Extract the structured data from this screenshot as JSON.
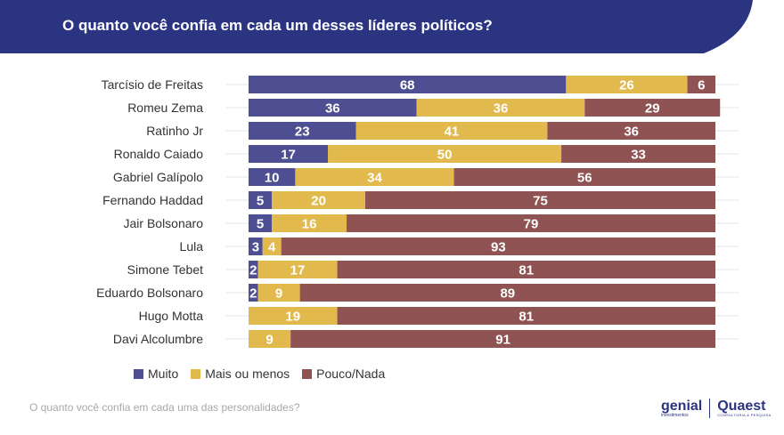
{
  "header": {
    "title": "O quanto você confia em cada um desses líderes políticos?"
  },
  "footer": {
    "note": "O quanto você confia em cada uma das personalidades?",
    "logo_genial": "genial",
    "logo_genial_sub": "investimentos",
    "logo_quaest": "Quaest",
    "logo_quaest_sub": "CONSULTORIA & PESQUISA"
  },
  "colors": {
    "header": "#2b3481",
    "muito": "#4e4f92",
    "mais_ou_menos": "#e2b94c",
    "pouco_nada": "#8e5352"
  },
  "chart_data": {
    "type": "bar",
    "orientation": "horizontal",
    "stacked": true,
    "title": "O quanto você confia em cada um desses líderes políticos?",
    "categories": [
      "Tarcísio de Freitas",
      "Romeu Zema",
      "Ratinho Jr",
      "Ronaldo Caiado",
      "Gabriel Galípolo",
      "Fernando Haddad",
      "Jair Bolsonaro",
      "Lula",
      "Simone Tebet",
      "Eduardo Bolsonaro",
      "Hugo Motta",
      "Davi Alcolumbre"
    ],
    "series": [
      {
        "name": "Muito",
        "color": "#4e4f92",
        "values": [
          68,
          36,
          23,
          17,
          10,
          5,
          5,
          3,
          2,
          2,
          0,
          0
        ]
      },
      {
        "name": "Mais ou menos",
        "color": "#e2b94c",
        "values": [
          26,
          36,
          41,
          50,
          34,
          20,
          16,
          4,
          17,
          9,
          19,
          9
        ]
      },
      {
        "name": "Pouco/Nada",
        "color": "#8e5352",
        "values": [
          6,
          29,
          36,
          33,
          56,
          75,
          79,
          93,
          81,
          89,
          81,
          91
        ]
      }
    ],
    "legend": {
      "position": "bottom-left",
      "entries": [
        "Muito",
        "Mais ou menos",
        "Pouco/Nada"
      ]
    },
    "grid": false
  }
}
